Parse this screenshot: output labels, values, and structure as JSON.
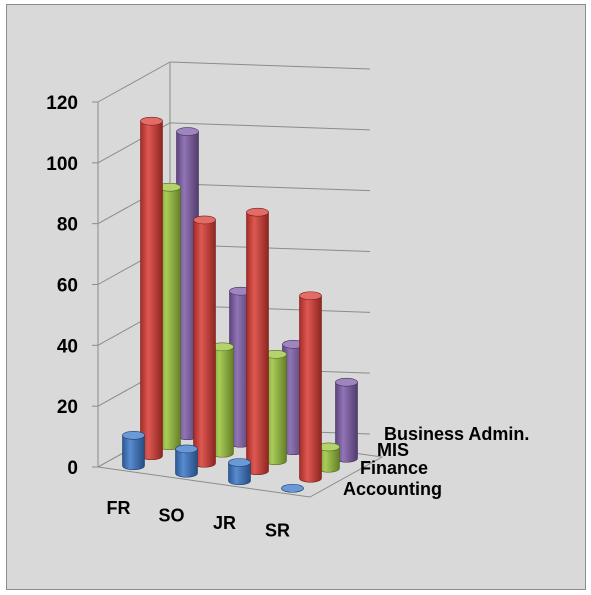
{
  "chart_data": {
    "type": "bar",
    "subtype": "3d-cylinder",
    "categories": [
      "FR",
      "SO",
      "JR",
      "SR"
    ],
    "series": [
      {
        "name": "Accounting",
        "values": [
          10,
          8,
          6,
          0
        ],
        "color": "#3a76c8"
      },
      {
        "name": "Finance",
        "values": [
          110,
          80,
          85,
          60
        ],
        "color": "#d93b33"
      },
      {
        "name": "MIS",
        "values": [
          85,
          35,
          35,
          7
        ],
        "color": "#9ac43b"
      },
      {
        "name": "Business Admin.",
        "values": [
          100,
          50,
          35,
          25
        ],
        "color": "#7d5ca8"
      }
    ],
    "yticks": [
      0,
      20,
      40,
      60,
      80,
      100,
      120
    ],
    "ylim": [
      0,
      120
    ],
    "grid": true,
    "legend": "none",
    "background": "#d9d9d9"
  }
}
